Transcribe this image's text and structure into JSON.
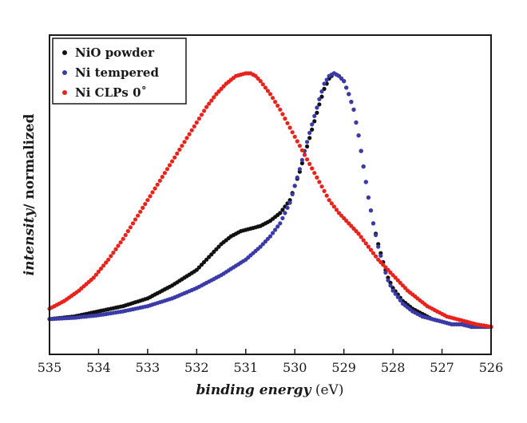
{
  "chart_data": {
    "type": "scatter",
    "xlabel_italic": "binding energy",
    "xlabel_unit": " (eV)",
    "ylabel_italic": "intensity",
    "ylabel_rest": "/ normalized",
    "xlim": [
      535,
      526
    ],
    "ylim": [
      0,
      1.08
    ],
    "x_ticks": [
      "535",
      "534",
      "533",
      "532",
      "531",
      "530",
      "529",
      "528",
      "527",
      "526"
    ],
    "legend_position": "top-left",
    "series": [
      {
        "name": "NiO powder",
        "color": "#111111",
        "x": [
          535.0,
          534.5,
          534.0,
          533.5,
          533.0,
          532.5,
          532.0,
          531.7,
          531.5,
          531.3,
          531.1,
          530.9,
          530.7,
          530.5,
          530.3,
          530.1,
          529.9,
          529.7,
          529.5,
          529.4,
          529.3,
          529.2,
          529.1,
          529.0,
          528.9,
          528.8,
          528.7,
          528.6,
          528.5,
          528.4,
          528.3,
          528.2,
          528.1,
          528.0,
          527.8,
          527.6,
          527.4,
          527.2,
          527.0,
          526.8,
          526.6,
          526.4,
          526.2,
          526.0
        ],
        "y": [
          0.05,
          0.06,
          0.08,
          0.1,
          0.13,
          0.18,
          0.24,
          0.3,
          0.34,
          0.37,
          0.39,
          0.4,
          0.41,
          0.43,
          0.46,
          0.51,
          0.62,
          0.75,
          0.88,
          0.94,
          0.98,
          1.0,
          0.99,
          0.97,
          0.92,
          0.86,
          0.76,
          0.64,
          0.52,
          0.42,
          0.34,
          0.27,
          0.21,
          0.17,
          0.12,
          0.09,
          0.07,
          0.05,
          0.04,
          0.03,
          0.03,
          0.02,
          0.02,
          0.02
        ]
      },
      {
        "name": "Ni tempered",
        "color": "#3a3aa8",
        "x": [
          535.0,
          534.5,
          534.0,
          533.5,
          533.0,
          532.5,
          532.0,
          531.5,
          531.0,
          530.7,
          530.5,
          530.3,
          530.1,
          529.9,
          529.7,
          529.5,
          529.4,
          529.3,
          529.2,
          529.1,
          529.0,
          528.9,
          528.8,
          528.7,
          528.6,
          528.5,
          528.4,
          528.3,
          528.2,
          528.1,
          528.0,
          527.8,
          527.6,
          527.4,
          527.2,
          527.0,
          526.8,
          526.6,
          526.4,
          526.2,
          526.0
        ],
        "y": [
          0.05,
          0.055,
          0.065,
          0.08,
          0.1,
          0.13,
          0.17,
          0.22,
          0.28,
          0.33,
          0.37,
          0.42,
          0.5,
          0.63,
          0.77,
          0.9,
          0.96,
          0.99,
          1.0,
          0.99,
          0.97,
          0.92,
          0.86,
          0.76,
          0.64,
          0.52,
          0.42,
          0.33,
          0.26,
          0.2,
          0.16,
          0.11,
          0.08,
          0.06,
          0.05,
          0.04,
          0.03,
          0.03,
          0.02,
          0.02,
          0.02
        ]
      },
      {
        "name": "Ni CLPs 0˚",
        "color": "#e8231c",
        "x": [
          535.0,
          534.7,
          534.4,
          534.1,
          533.8,
          533.5,
          533.2,
          532.9,
          532.6,
          532.3,
          532.0,
          531.8,
          531.6,
          531.4,
          531.2,
          531.0,
          530.9,
          530.8,
          530.7,
          530.5,
          530.3,
          530.1,
          529.9,
          529.7,
          529.5,
          529.3,
          529.1,
          528.9,
          528.7,
          528.5,
          528.3,
          528.1,
          527.9,
          527.7,
          527.5,
          527.3,
          527.1,
          526.9,
          526.7,
          526.5,
          526.3,
          526.0
        ],
        "y": [
          0.09,
          0.12,
          0.16,
          0.21,
          0.28,
          0.36,
          0.45,
          0.54,
          0.63,
          0.72,
          0.81,
          0.87,
          0.92,
          0.96,
          0.99,
          1.0,
          1.0,
          0.99,
          0.97,
          0.92,
          0.86,
          0.79,
          0.72,
          0.65,
          0.58,
          0.51,
          0.46,
          0.42,
          0.38,
          0.33,
          0.28,
          0.24,
          0.2,
          0.16,
          0.13,
          0.1,
          0.08,
          0.06,
          0.05,
          0.04,
          0.03,
          0.02
        ]
      }
    ]
  }
}
